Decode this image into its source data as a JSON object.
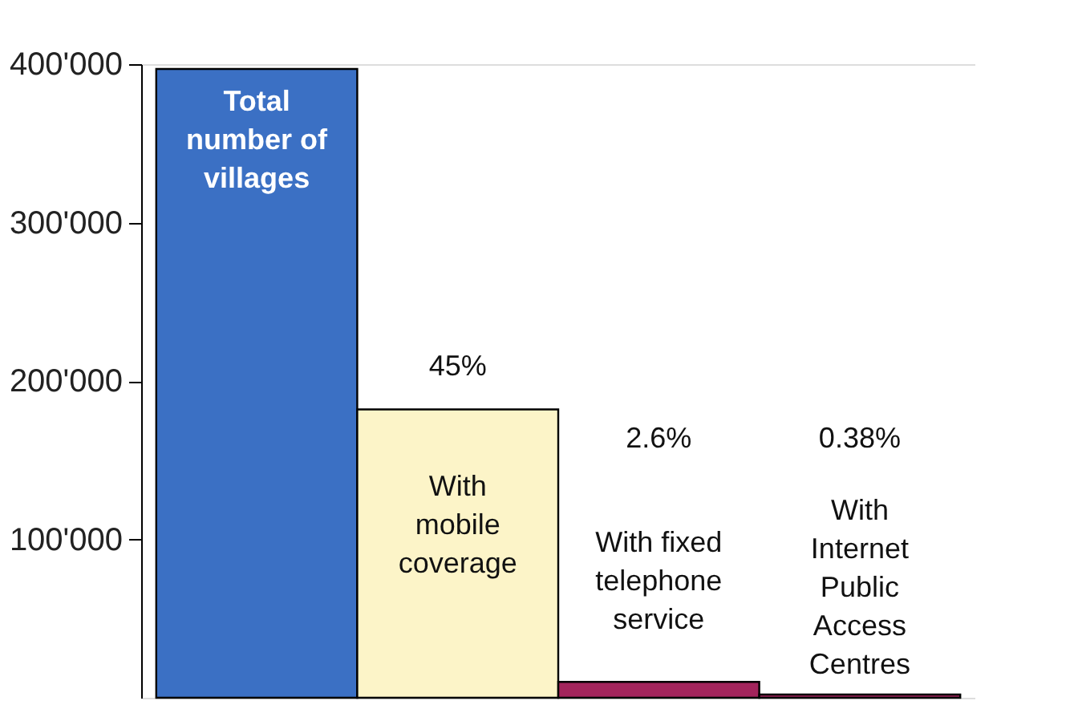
{
  "chart_data": {
    "type": "bar",
    "categories": [
      "Total number of villages",
      "With mobile coverage",
      "With fixed telephone service",
      "With Internet Public Access Centres"
    ],
    "values": [
      397000,
      182000,
      10000,
      2000
    ],
    "colors": [
      "#3b70c4",
      "#fcf4c8",
      "#a3245c",
      "#a3245c"
    ],
    "annotations": [
      "45%",
      "2.6%",
      "0.38%"
    ],
    "ylim": [
      0,
      400000
    ],
    "yticks": [
      {
        "value": 100000,
        "label": "100'000"
      },
      {
        "value": 200000,
        "label": "200'000"
      },
      {
        "value": 300000,
        "label": "300'000"
      },
      {
        "value": 400000,
        "label": "400'000"
      }
    ],
    "grid": false,
    "tick_labels": "y"
  }
}
